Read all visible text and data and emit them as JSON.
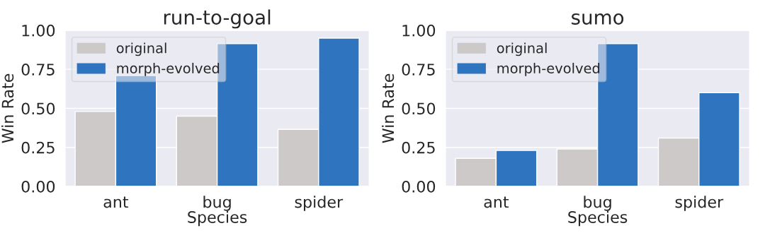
{
  "chart_data": [
    {
      "type": "bar",
      "title": "run-to-goal",
      "xlabel": "Species",
      "ylabel": "Win Rate",
      "categories": [
        "ant",
        "bug",
        "spider"
      ],
      "series": [
        {
          "name": "original",
          "color": "#cdc9c9",
          "values": [
            0.48,
            0.45,
            0.365
          ]
        },
        {
          "name": "morph-evolved",
          "color": "#2f74bf",
          "values": [
            0.71,
            0.915,
            0.95
          ]
        }
      ],
      "ylim": [
        0,
        1
      ],
      "yticks": [
        {
          "value": 0,
          "label": "0.00"
        },
        {
          "value": 0.25,
          "label": "0.25"
        },
        {
          "value": 0.5,
          "label": "0.50"
        },
        {
          "value": 0.75,
          "label": "0.75"
        },
        {
          "value": 1,
          "label": "1.00"
        }
      ],
      "grid": "y",
      "legend": "top left"
    },
    {
      "type": "bar",
      "title": "sumo",
      "xlabel": "Species",
      "ylabel": "Win Rate",
      "categories": [
        "ant",
        "bug",
        "spider"
      ],
      "series": [
        {
          "name": "original",
          "color": "#cdc9c9",
          "values": [
            0.18,
            0.24,
            0.31
          ]
        },
        {
          "name": "morph-evolved",
          "color": "#2f74bf",
          "values": [
            0.23,
            0.915,
            0.6
          ]
        }
      ],
      "ylim": [
        0,
        1
      ],
      "yticks": [
        {
          "value": 0,
          "label": "0.00"
        },
        {
          "value": 0.25,
          "label": "0.25"
        },
        {
          "value": 0.5,
          "label": "0.50"
        },
        {
          "value": 0.75,
          "label": "0.75"
        },
        {
          "value": 1,
          "label": "1.00"
        }
      ],
      "grid": "y",
      "legend": "top left"
    }
  ]
}
